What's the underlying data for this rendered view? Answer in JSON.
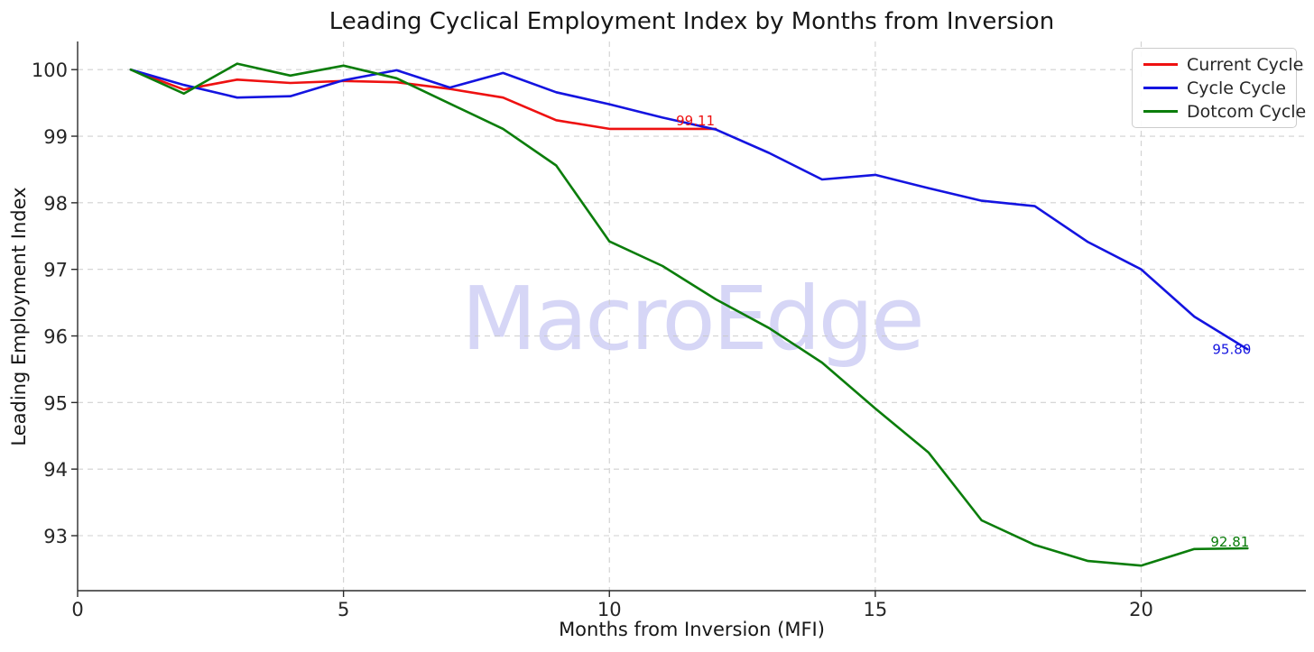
{
  "title": "Leading Cyclical Employment Index by Months from Inversion",
  "watermark": "MacroEdge",
  "axes": {
    "x_label": "Months from Inversion (MFI)",
    "y_label": "Leading Employment Index",
    "x_ticks": [
      0,
      5,
      10,
      15,
      20
    ],
    "y_ticks": [
      93,
      94,
      95,
      96,
      97,
      98,
      99,
      100
    ],
    "x_range": [
      0,
      23.1
    ],
    "y_range": [
      92.17,
      100.42
    ],
    "grid": true
  },
  "colors": {
    "current_cycle": "#ee1111",
    "cycle_cycle": "#1414e0",
    "dotcom_cycle": "#0b7d0b",
    "grid": "#c9c9c9",
    "spine": "#2b2b2b",
    "tick_text": "#262626",
    "watermark": "#d6d6f6"
  },
  "legend": {
    "position": "upper right",
    "entries": [
      {
        "label": "Current Cycle",
        "color": "#ee1111"
      },
      {
        "label": "Cycle Cycle",
        "color": "#1414e0"
      },
      {
        "label": "Dotcom Cycle",
        "color": "#0b7d0b"
      }
    ]
  },
  "chart_data": {
    "type": "line",
    "title": "Leading Cyclical Employment Index by Months from Inversion",
    "xlabel": "Months from Inversion (MFI)",
    "ylabel": "Leading Employment Index",
    "xlim": [
      0,
      23.1
    ],
    "ylim": [
      92.17,
      100.42
    ],
    "grid": true,
    "legend_position": "upper right",
    "series": [
      {
        "name": "Current Cycle",
        "color": "#ee1111",
        "end_label": "99.11",
        "x": [
          1,
          2,
          3,
          4,
          5,
          6,
          7,
          8,
          9,
          10,
          11,
          12
        ],
        "values": [
          100.0,
          99.7,
          99.85,
          99.8,
          99.83,
          99.81,
          99.71,
          99.58,
          99.24,
          99.11,
          99.11,
          99.11
        ]
      },
      {
        "name": "Cycle Cycle",
        "color": "#1414e0",
        "end_label": "95.80",
        "x": [
          1,
          2,
          3,
          4,
          5,
          6,
          7,
          8,
          9,
          10,
          11,
          12,
          13,
          14,
          15,
          16,
          17,
          18,
          19,
          20,
          21,
          22
        ],
        "values": [
          100.0,
          99.77,
          99.58,
          99.6,
          99.84,
          99.99,
          99.73,
          99.95,
          99.66,
          99.48,
          99.28,
          99.1,
          98.75,
          98.35,
          98.42,
          98.22,
          98.03,
          97.95,
          97.41,
          97.0,
          96.29,
          95.8
        ]
      },
      {
        "name": "Dotcom Cycle",
        "color": "#0b7d0b",
        "end_label": "92.81",
        "x": [
          1,
          2,
          3,
          4,
          5,
          6,
          7,
          8,
          9,
          10,
          11,
          12,
          13,
          14,
          15,
          16,
          17,
          18,
          19,
          20,
          21,
          22
        ],
        "values": [
          100.0,
          99.64,
          100.09,
          99.91,
          100.06,
          99.87,
          99.49,
          99.11,
          98.56,
          97.42,
          97.05,
          96.55,
          96.12,
          95.6,
          94.91,
          94.25,
          93.23,
          92.86,
          92.62,
          92.55,
          92.8,
          92.81
        ]
      }
    ]
  }
}
